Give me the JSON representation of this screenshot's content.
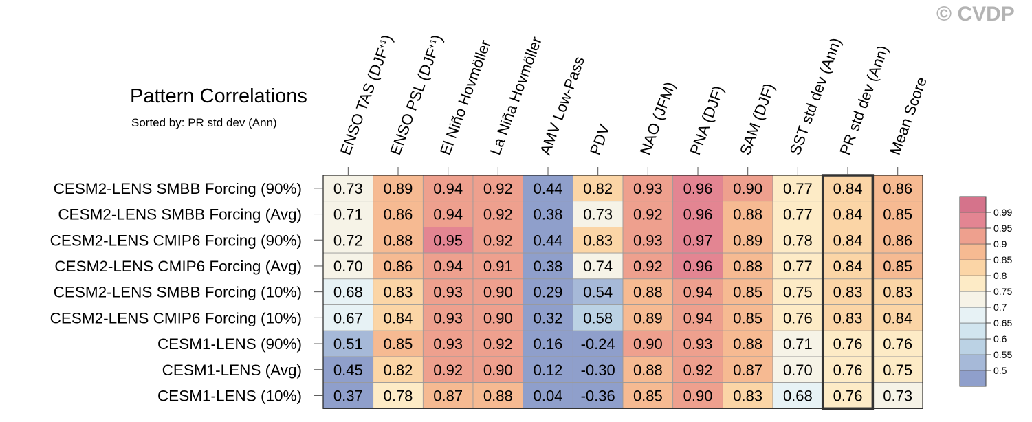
{
  "title": "Pattern Correlations",
  "subtitle": "Sorted by: PR std dev (Ann)",
  "watermark": "© CVDP",
  "chart_data": {
    "type": "heatmap",
    "title": "Pattern Correlations",
    "subtitle": "Sorted by: PR std dev (Ann)",
    "columns": [
      "ENSO TAS (DJF+1)",
      "ENSO PSL (DJF+1)",
      "El Niño Hovmöller",
      "La Niña Hovmöller",
      "AMV Low-Pass",
      "PDV",
      "NAO (JFM)",
      "PNA (DJF)",
      "SAM (DJF)",
      "SST std dev (Ann)",
      "PR std dev (Ann)",
      "Mean Score"
    ],
    "rows": [
      "CESM2-LENS SMBB Forcing (90%)",
      "CESM2-LENS SMBB Forcing (Avg)",
      "CESM2-LENS CMIP6 Forcing (90%)",
      "CESM2-LENS CMIP6 Forcing (Avg)",
      "CESM2-LENS SMBB Forcing (10%)",
      "CESM2-LENS CMIP6 Forcing (10%)",
      "CESM1-LENS (90%)",
      "CESM1-LENS (Avg)",
      "CESM1-LENS (10%)"
    ],
    "values": [
      [
        0.73,
        0.89,
        0.94,
        0.92,
        0.44,
        0.82,
        0.93,
        0.96,
        0.9,
        0.77,
        0.84,
        0.86
      ],
      [
        0.71,
        0.86,
        0.94,
        0.92,
        0.38,
        0.73,
        0.92,
        0.96,
        0.88,
        0.77,
        0.84,
        0.85
      ],
      [
        0.72,
        0.88,
        0.95,
        0.92,
        0.44,
        0.83,
        0.93,
        0.97,
        0.89,
        0.78,
        0.84,
        0.86
      ],
      [
        0.7,
        0.86,
        0.94,
        0.91,
        0.38,
        0.74,
        0.92,
        0.96,
        0.88,
        0.77,
        0.84,
        0.85
      ],
      [
        0.68,
        0.83,
        0.93,
        0.9,
        0.29,
        0.54,
        0.88,
        0.94,
        0.85,
        0.75,
        0.83,
        0.83
      ],
      [
        0.67,
        0.84,
        0.93,
        0.9,
        0.32,
        0.58,
        0.89,
        0.94,
        0.85,
        0.76,
        0.83,
        0.84
      ],
      [
        0.51,
        0.85,
        0.93,
        0.92,
        0.16,
        -0.24,
        0.9,
        0.93,
        0.88,
        0.71,
        0.76,
        0.76
      ],
      [
        0.45,
        0.82,
        0.92,
        0.9,
        0.12,
        -0.3,
        0.88,
        0.92,
        0.87,
        0.7,
        0.76,
        0.75
      ],
      [
        0.37,
        0.78,
        0.87,
        0.88,
        0.04,
        -0.36,
        0.85,
        0.9,
        0.83,
        0.68,
        0.76,
        0.73
      ]
    ],
    "highlighted_column": "PR std dev (Ann)",
    "colorbar": {
      "levels": [
        0.5,
        0.55,
        0.6,
        0.65,
        0.7,
        0.75,
        0.8,
        0.85,
        0.9,
        0.95,
        0.99
      ],
      "labels": [
        "0.5",
        "0.55",
        "0.6",
        "0.65",
        "0.7",
        "0.75",
        "0.8",
        "0.85",
        "0.9",
        "0.95",
        "0.99"
      ],
      "colors": [
        "#8f9fcb",
        "#a6b9d8",
        "#bbd2e4",
        "#d1e5ef",
        "#e7f2f5",
        "#f6f3e7",
        "#fdebc6",
        "#fbd5a6",
        "#f6ba92",
        "#eea08e",
        "#e38592",
        "#d5738b"
      ]
    }
  }
}
